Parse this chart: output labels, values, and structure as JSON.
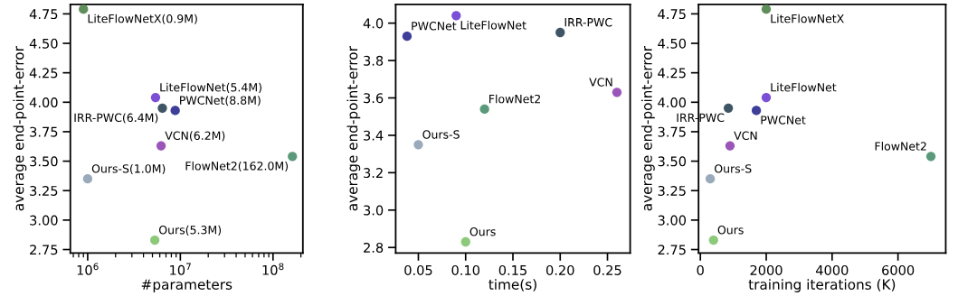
{
  "chart_data": [
    {
      "type": "scatter",
      "xlabel": "#parameters",
      "ylabel": "average end-point-error",
      "log": "x",
      "xlim": [
        650000,
        210000000
      ],
      "ylim": [
        2.72,
        4.83
      ],
      "xticks": [
        {
          "value": 1000000,
          "label": "10$^{6}$"
        },
        {
          "value": 10000000,
          "label": "10$^{7}$"
        },
        {
          "value": 100000000,
          "label": "10$^{8}$"
        }
      ],
      "yticks": [
        {
          "value": 2.75,
          "label": "2.75"
        },
        {
          "value": 3.0,
          "label": "3.00"
        },
        {
          "value": 3.25,
          "label": "3.25"
        },
        {
          "value": 3.5,
          "label": "3.50"
        },
        {
          "value": 3.75,
          "label": "3.75"
        },
        {
          "value": 4.0,
          "label": "4.00"
        },
        {
          "value": 4.25,
          "label": "4.25"
        },
        {
          "value": 4.5,
          "label": "4.50"
        },
        {
          "value": 4.75,
          "label": "4.75"
        }
      ],
      "series": [
        {
          "name": "LiteFlowNetX(0.9M)",
          "color": "#5e8f5a",
          "x": [
            900000
          ],
          "values": [
            4.79
          ]
        },
        {
          "name": "LiteFlowNet(5.4M)",
          "color": "#7b4fd6",
          "x": [
            5400000
          ],
          "values": [
            4.04
          ]
        },
        {
          "name": "IRR-PWC(6.4M)",
          "color": "#3f5566",
          "x": [
            6400000
          ],
          "values": [
            3.95
          ]
        },
        {
          "name": "PWCNet(8.8M)",
          "color": "#3d3f99",
          "x": [
            8800000
          ],
          "values": [
            3.93
          ]
        },
        {
          "name": "VCN(6.2M)",
          "color": "#9b55b8",
          "x": [
            6200000
          ],
          "values": [
            3.63
          ]
        },
        {
          "name": "FlowNet2(162.0M)",
          "color": "#5a9a7a",
          "x": [
            162000000
          ],
          "values": [
            3.54
          ]
        },
        {
          "name": "Ours-S(1.0M)",
          "color": "#9aaabb",
          "x": [
            1000000
          ],
          "values": [
            3.35
          ]
        },
        {
          "name": "Ours(5.3M)",
          "color": "#8cc97a",
          "x": [
            5300000
          ],
          "values": [
            2.83
          ]
        }
      ]
    },
    {
      "type": "scatter",
      "xlabel": "time(s)",
      "ylabel": "average end-point-error",
      "xlim": [
        0.026,
        0.274
      ],
      "ylim": [
        2.77,
        4.1
      ],
      "xticks": [
        {
          "value": 0.05,
          "label": "0.05"
        },
        {
          "value": 0.1,
          "label": "0.10"
        },
        {
          "value": 0.15,
          "label": "0.15"
        },
        {
          "value": 0.2,
          "label": "0.20"
        },
        {
          "value": 0.25,
          "label": "0.25"
        }
      ],
      "yticks": [
        {
          "value": 2.8,
          "label": "2.8"
        },
        {
          "value": 3.0,
          "label": "3.0"
        },
        {
          "value": 3.2,
          "label": "3.2"
        },
        {
          "value": 3.4,
          "label": "3.4"
        },
        {
          "value": 3.6,
          "label": "3.6"
        },
        {
          "value": 3.8,
          "label": "3.8"
        },
        {
          "value": 4.0,
          "label": "4.0"
        }
      ],
      "series": [
        {
          "name": "PWCNet",
          "color": "#3d3f99",
          "x": [
            0.038
          ],
          "values": [
            3.93
          ]
        },
        {
          "name": "LiteFlowNet",
          "color": "#7b4fd6",
          "x": [
            0.09
          ],
          "values": [
            4.04
          ]
        },
        {
          "name": "IRR-PWC",
          "color": "#3f5566",
          "x": [
            0.2
          ],
          "values": [
            3.95
          ]
        },
        {
          "name": "VCN",
          "color": "#9b55b8",
          "x": [
            0.26
          ],
          "values": [
            3.63
          ]
        },
        {
          "name": "FlowNet2",
          "color": "#5a9a7a",
          "x": [
            0.12
          ],
          "values": [
            3.54
          ]
        },
        {
          "name": "Ours-S",
          "color": "#9aaabb",
          "x": [
            0.05
          ],
          "values": [
            3.35
          ]
        },
        {
          "name": "Ours",
          "color": "#8cc97a",
          "x": [
            0.1
          ],
          "values": [
            2.83
          ]
        }
      ]
    },
    {
      "type": "scatter",
      "xlabel": "training iterations (K)",
      "ylabel": "average end-point-error",
      "xlim": [
        -55,
        7450
      ],
      "ylim": [
        2.72,
        4.83
      ],
      "xticks": [
        0,
        2000,
        4000,
        6000
      ],
      "yticks": [
        {
          "value": 2.75,
          "label": "2.75"
        },
        {
          "value": 3.0,
          "label": "3.00"
        },
        {
          "value": 3.25,
          "label": "3.25"
        },
        {
          "value": 3.5,
          "label": "3.50"
        },
        {
          "value": 3.75,
          "label": "3.75"
        },
        {
          "value": 4.0,
          "label": "4.00"
        },
        {
          "value": 4.25,
          "label": "4.25"
        },
        {
          "value": 4.5,
          "label": "4.50"
        },
        {
          "value": 4.75,
          "label": "4.75"
        }
      ],
      "series": [
        {
          "name": "LiteFlowNetX",
          "color": "#5e8f5a",
          "x": [
            2000
          ],
          "values": [
            4.79
          ]
        },
        {
          "name": "LiteFlowNet",
          "color": "#7b4fd6",
          "x": [
            2000
          ],
          "values": [
            4.04
          ]
        },
        {
          "name": "IRR-PWC",
          "color": "#3f5566",
          "x": [
            850
          ],
          "values": [
            3.95
          ]
        },
        {
          "name": "PWCNet",
          "color": "#3d3f99",
          "x": [
            1700
          ],
          "values": [
            3.93
          ]
        },
        {
          "name": "VCN",
          "color": "#9b55b8",
          "x": [
            900
          ],
          "values": [
            3.63
          ]
        },
        {
          "name": "FlowNet2",
          "color": "#5a9a7a",
          "x": [
            7000
          ],
          "values": [
            3.54
          ]
        },
        {
          "name": "Ours-S",
          "color": "#9aaabb",
          "x": [
            300
          ],
          "values": [
            3.35
          ]
        },
        {
          "name": "Ours",
          "color": "#8cc97a",
          "x": [
            400
          ],
          "values": [
            2.83
          ]
        }
      ]
    }
  ]
}
